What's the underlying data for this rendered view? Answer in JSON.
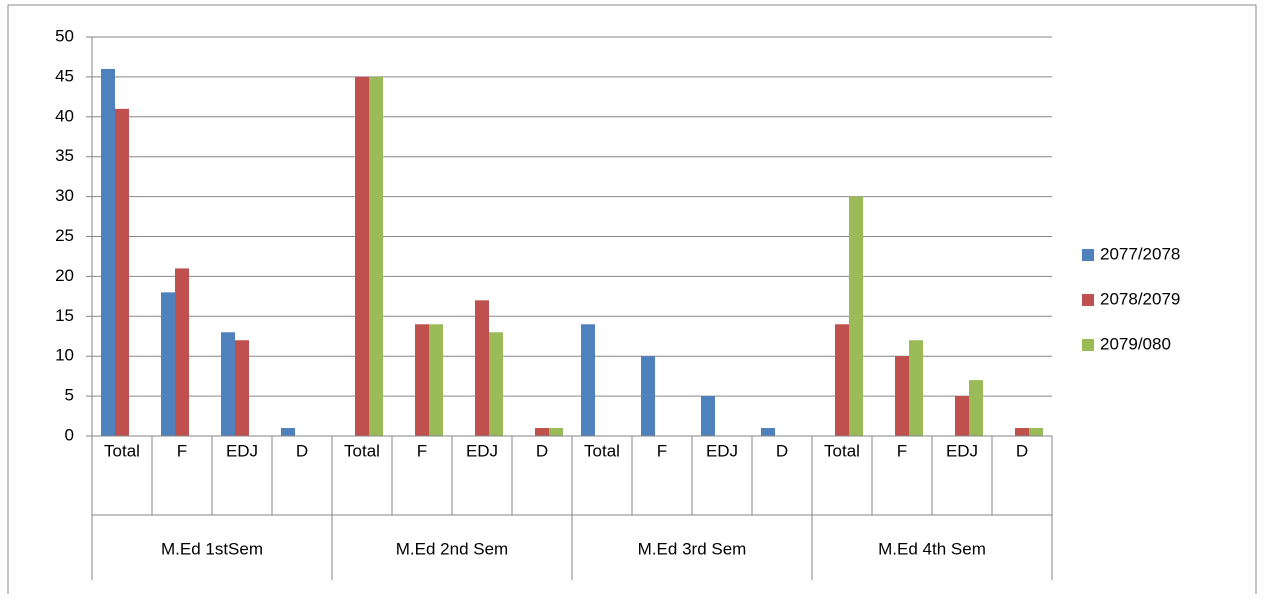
{
  "chart_data": {
    "type": "bar",
    "categories": [
      "Total",
      "F",
      "EDJ",
      "D",
      "Total",
      "F",
      "EDJ",
      "D",
      "Total",
      "F",
      "EDJ",
      "D",
      "Total",
      "F",
      "EDJ",
      "D"
    ],
    "groups": [
      "M.Ed 1stSem",
      "M.Ed 2nd Sem",
      "M.Ed 3rd Sem",
      "M.Ed 4th Sem"
    ],
    "series": [
      {
        "name": "2077/2078",
        "color": "#4f81bd",
        "values": [
          46,
          18,
          13,
          1,
          0,
          0,
          0,
          0,
          14,
          10,
          5,
          1,
          0,
          0,
          0,
          0
        ]
      },
      {
        "name": "2078/2079",
        "color": "#c0504d",
        "values": [
          41,
          21,
          12,
          0,
          45,
          14,
          17,
          1,
          0,
          0,
          0,
          0,
          14,
          10,
          5,
          1
        ]
      },
      {
        "name": "2079/080",
        "color": "#9bbb59",
        "values": [
          0,
          0,
          0,
          0,
          45,
          14,
          13,
          1,
          0,
          0,
          0,
          0,
          30,
          12,
          7,
          1
        ]
      }
    ],
    "ylim": [
      0,
      50
    ],
    "yticks": [
      0,
      5,
      10,
      15,
      20,
      25,
      30,
      35,
      40,
      45,
      50
    ],
    "grid": true,
    "legend": "right"
  }
}
